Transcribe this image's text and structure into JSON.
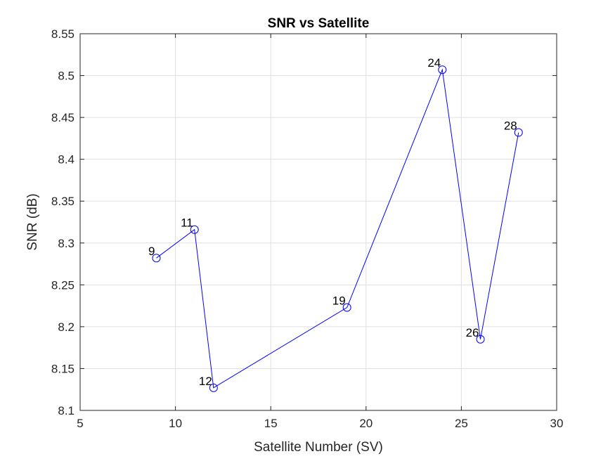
{
  "chart_data": {
    "type": "line",
    "title": "SNR vs Satellite",
    "xlabel": "Satellite Number (SV)",
    "ylabel": "SNR (dB)",
    "xlim": [
      5,
      30
    ],
    "ylim": [
      8.1,
      8.55
    ],
    "xticks": [
      "5",
      "10",
      "15",
      "20",
      "25",
      "30"
    ],
    "yticks": [
      "8.1",
      "8.15",
      "8.2",
      "8.25",
      "8.3",
      "8.35",
      "8.4",
      "8.45",
      "8.5",
      "8.55"
    ],
    "grid": true,
    "marker": "circle",
    "line_color": "#0000ff",
    "series": [
      {
        "x": [
          9,
          11,
          12,
          19,
          24,
          26,
          28
        ],
        "y": [
          8.282,
          8.316,
          8.127,
          8.223,
          8.507,
          8.185,
          8.432
        ],
        "labels": [
          "9",
          "11",
          "12",
          "19",
          "24",
          "26",
          "28"
        ]
      }
    ]
  }
}
